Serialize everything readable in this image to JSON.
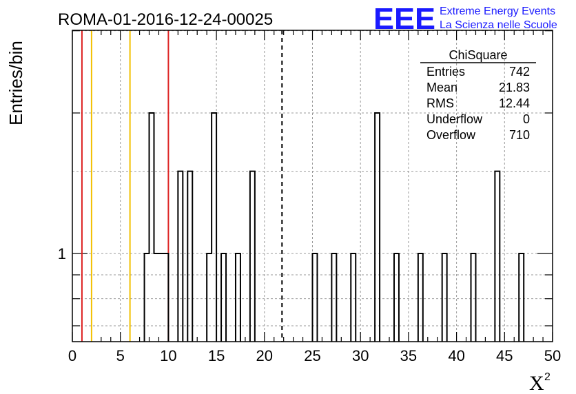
{
  "header": {
    "run_title": "ROMA-01-2016-12-24-00025",
    "logo_mark": "EEE",
    "logo_line1": "Extreme Energy Events",
    "logo_line2": "La Scienza nelle Scuole",
    "logo_color": "#1a1aff"
  },
  "stats_box": {
    "title": "ChiSquare",
    "rows": [
      {
        "label": "Entries",
        "value": "742"
      },
      {
        "label": "Mean",
        "value": "21.83"
      },
      {
        "label": "RMS",
        "value": "12.44"
      },
      {
        "label": "Underflow",
        "value": "0"
      },
      {
        "label": "Overflow",
        "value": "710"
      }
    ]
  },
  "chart_data": {
    "type": "histogram",
    "xlabel": "X",
    "xlabel_superscript": "2",
    "ylabel": "Entries/bin",
    "x_range": [
      0,
      50
    ],
    "bin_width": 0.5,
    "y_scale": "log",
    "y_tick_label": "1",
    "x_ticks": [
      "0",
      "5",
      "10",
      "15",
      "20",
      "25",
      "30",
      "35",
      "40",
      "45",
      "50"
    ],
    "grid": true,
    "bins": [
      {
        "x": 7.5,
        "count": 1
      },
      {
        "x": 8.0,
        "count": 2
      },
      {
        "x": 8.5,
        "count": 1
      },
      {
        "x": 9.0,
        "count": 1
      },
      {
        "x": 9.5,
        "count": 1
      },
      {
        "x": 11.0,
        "count": 1.5
      },
      {
        "x": 12.0,
        "count": 1.5
      },
      {
        "x": 14.0,
        "count": 1
      },
      {
        "x": 14.5,
        "count": 2
      },
      {
        "x": 15.5,
        "count": 1
      },
      {
        "x": 17.0,
        "count": 1
      },
      {
        "x": 18.5,
        "count": 1.5
      },
      {
        "x": 25.0,
        "count": 1
      },
      {
        "x": 27.0,
        "count": 1
      },
      {
        "x": 29.0,
        "count": 1
      },
      {
        "x": 31.5,
        "count": 2
      },
      {
        "x": 33.5,
        "count": 1
      },
      {
        "x": 36.0,
        "count": 1
      },
      {
        "x": 38.5,
        "count": 1
      },
      {
        "x": 41.5,
        "count": 1
      },
      {
        "x": 44.0,
        "count": 1.5
      },
      {
        "x": 46.5,
        "count": 1
      }
    ],
    "reference_lines": [
      {
        "x": 1,
        "color": "#dd2222",
        "style": "solid"
      },
      {
        "x": 2,
        "color": "#f2c000",
        "style": "solid"
      },
      {
        "x": 6,
        "color": "#f2c000",
        "style": "solid"
      },
      {
        "x": 10,
        "color": "#dd2222",
        "style": "solid"
      },
      {
        "x": 21.83,
        "color": "#000000",
        "style": "dashed"
      }
    ]
  }
}
